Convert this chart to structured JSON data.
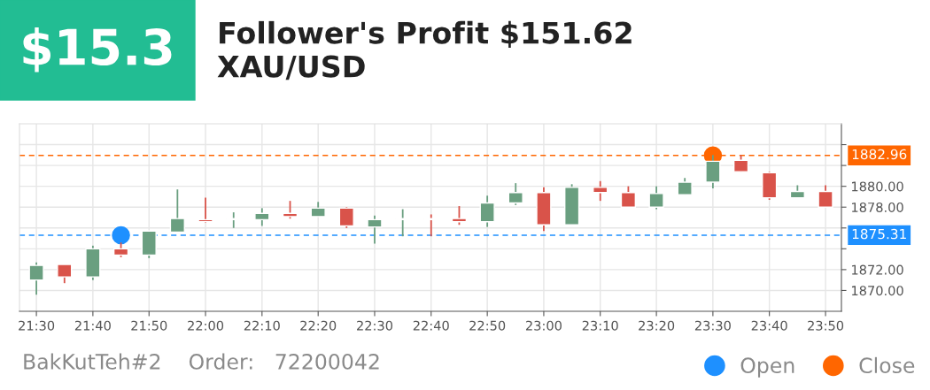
{
  "chart_data": {
    "type": "candlestick",
    "title": "Follower's Profit $151.62",
    "subtitle": "XAU/USD",
    "annotations": [
      "$15.3",
      "BakKutTeh#2    Order:   72200042"
    ],
    "x": [
      21.5,
      21.583,
      21.667,
      21.75,
      21.833,
      21.917,
      22.0,
      22.083,
      22.167,
      22.25,
      22.333,
      22.417,
      22.5,
      22.583,
      22.667,
      22.75,
      22.833,
      22.917,
      23.0,
      23.083,
      23.167,
      23.25,
      23.333,
      23.417,
      23.5,
      23.583,
      23.667,
      23.75,
      23.833
    ],
    "ohlc": [
      [
        1871.0,
        1872.7,
        1869.6,
        1872.4
      ],
      [
        1872.5,
        1872.5,
        1870.7,
        1871.3
      ],
      [
        1871.3,
        1874.3,
        1871.0,
        1874.0
      ],
      [
        1874.0,
        1874.6,
        1873.2,
        1873.4
      ],
      [
        1873.4,
        1875.7,
        1873.1,
        1875.7
      ],
      [
        1875.6,
        1879.7,
        1875.6,
        1876.9
      ],
      [
        1876.8,
        1878.9,
        1876.5,
        1876.6
      ],
      [
        1876.8,
        1877.5,
        1876.0,
        1876.9
      ],
      [
        1876.8,
        1877.9,
        1876.2,
        1877.4
      ],
      [
        1877.4,
        1878.6,
        1876.9,
        1877.1
      ],
      [
        1877.1,
        1878.5,
        1877.1,
        1877.9
      ],
      [
        1877.9,
        1878.0,
        1876.0,
        1876.2
      ],
      [
        1876.1,
        1877.2,
        1874.5,
        1876.8
      ],
      [
        1876.8,
        1877.8,
        1875.2,
        1876.9
      ],
      [
        1876.9,
        1877.3,
        1875.2,
        1876.8
      ],
      [
        1876.9,
        1878.1,
        1876.3,
        1876.6
      ],
      [
        1876.6,
        1879.1,
        1876.1,
        1878.4
      ],
      [
        1878.4,
        1880.3,
        1878.2,
        1879.4
      ],
      [
        1879.4,
        1879.9,
        1875.7,
        1876.3
      ],
      [
        1876.3,
        1880.2,
        1876.3,
        1879.9
      ],
      [
        1879.9,
        1880.5,
        1878.6,
        1879.4
      ],
      [
        1879.4,
        1880.0,
        1878.0,
        1878.0
      ],
      [
        1878.0,
        1880.0,
        1877.8,
        1879.3
      ],
      [
        1879.2,
        1880.8,
        1879.2,
        1880.4
      ],
      [
        1880.4,
        1883.0,
        1879.8,
        1882.4
      ],
      [
        1882.5,
        1883.0,
        1881.4,
        1881.4
      ],
      [
        1881.3,
        1881.4,
        1878.7,
        1878.9
      ],
      [
        1878.9,
        1880.1,
        1878.9,
        1879.5
      ],
      [
        1879.5,
        1880.1,
        1878.0,
        1878.0
      ]
    ],
    "colors": [
      "#6a9f80",
      "#d9534a",
      "#6a9f80",
      "#d9534a",
      "#6a9f80",
      "#6a9f80",
      "#d9534a",
      "#6a9f80",
      "#6a9f80",
      "#d9534a",
      "#6a9f80",
      "#d9534a",
      "#6a9f80",
      "#6a9f80",
      "#d9534a",
      "#d9534a",
      "#6a9f80",
      "#6a9f80",
      "#d9534a",
      "#6a9f80",
      "#d9534a",
      "#d9534a",
      "#6a9f80",
      "#6a9f80",
      "#6a9f80",
      "#d9534a",
      "#d9534a",
      "#6a9f80",
      "#d9534a"
    ],
    "series": [
      {
        "type": "scatter",
        "name": "Open",
        "color": "#1e90ff",
        "x": [
          21.75
        ],
        "values": [
          1875.31
        ]
      },
      {
        "type": "scatter",
        "name": "Close",
        "color": "#ff6600",
        "x": [
          23.5
        ],
        "values": [
          1882.96
        ]
      }
    ],
    "ref_lines": [
      {
        "axis": "y",
        "value": 1882.96,
        "label": "1882.96",
        "color": "#ff6600",
        "line_style": "dashed"
      },
      {
        "axis": "y",
        "value": 1875.31,
        "label": "1875.31",
        "color": "#1e90ff",
        "line_style": "dashed"
      }
    ],
    "xlim": [
      21.45,
      23.88
    ],
    "xticks": [
      {
        "value": 21.5,
        "label": "21:30"
      },
      {
        "value": 21.667,
        "label": "21:40"
      },
      {
        "value": 21.833,
        "label": "21:50"
      },
      {
        "value": 22.0,
        "label": "22:00"
      },
      {
        "value": 22.167,
        "label": "22:10"
      },
      {
        "value": 22.333,
        "label": "22:20"
      },
      {
        "value": 22.5,
        "label": "22:30"
      },
      {
        "value": 22.667,
        "label": "22:40"
      },
      {
        "value": 22.833,
        "label": "22:50"
      },
      {
        "value": 23.0,
        "label": "23:00"
      },
      {
        "value": 23.167,
        "label": "23:10"
      },
      {
        "value": 23.333,
        "label": "23:20"
      },
      {
        "value": 23.5,
        "label": "23:30"
      },
      {
        "value": 23.667,
        "label": "23:40"
      },
      {
        "value": 23.833,
        "label": "23:50"
      }
    ],
    "ylim": [
      1868,
      1886
    ],
    "yticks": [
      {
        "value": 1870,
        "label": "1870.00"
      },
      {
        "value": 1872,
        "label": "1872.00"
      },
      {
        "value": 1874,
        "label": null
      },
      {
        "value": 1876,
        "label": null
      },
      {
        "value": 1878,
        "label": "1878.00"
      },
      {
        "value": 1880,
        "label": "1880.00"
      },
      {
        "value": 1882,
        "label": null
      },
      {
        "value": 1884,
        "label": null
      }
    ],
    "grid": true,
    "marker": "circle",
    "legend": "bottom right"
  }
}
